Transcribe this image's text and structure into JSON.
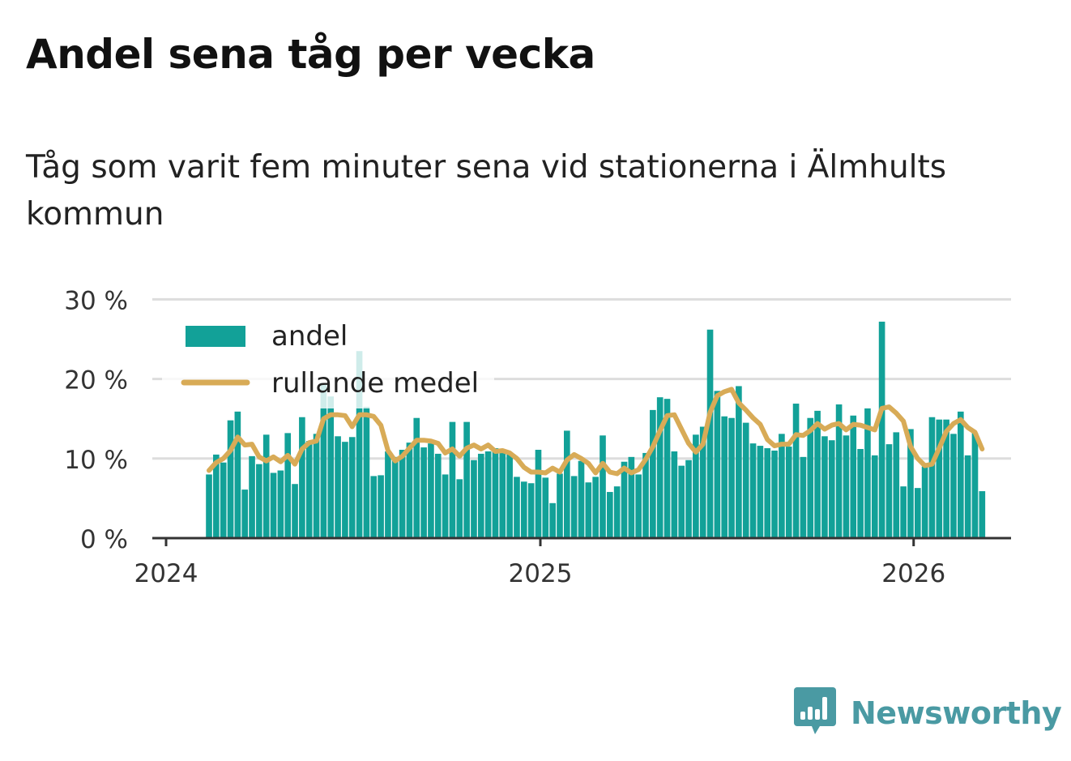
{
  "title": "Andel sena tåg per vecka",
  "subtitle": "Tåg som varit fem minuter sena vid stationerna i Älmhults kommun",
  "brand": {
    "name": "Newsworthy",
    "icon": "newsworthy-chart-bubble-icon",
    "color": "#4a9aa3"
  },
  "colors": {
    "bar": "#12a198",
    "line": "#d8ab57",
    "grid": "#dddddd",
    "axis": "#333333"
  },
  "chart_data": {
    "type": "bar",
    "title": "Andel sena tåg per vecka",
    "xlabel": "",
    "ylabel": "",
    "x_ticks": [
      "2024",
      "2025",
      "2026"
    ],
    "y_ticks": [
      "0 %",
      "10 %",
      "20 %",
      "30 %"
    ],
    "ylim": [
      0,
      30
    ],
    "grid": true,
    "legend_position": "top-left",
    "start_week": "2024-02-12",
    "series": [
      {
        "name": "andel",
        "kind": "bar",
        "values": [
          8.0,
          10.5,
          9.5,
          14.8,
          15.9,
          6.1,
          10.3,
          9.3,
          13.0,
          8.2,
          8.5,
          13.2,
          6.8,
          15.2,
          12.2,
          13.1,
          19.5,
          17.8,
          12.8,
          12.1,
          12.7,
          23.5,
          16.5,
          7.8,
          7.9,
          10.9,
          10.2,
          11.1,
          12.0,
          15.1,
          11.4,
          11.9,
          10.6,
          8.0,
          14.6,
          7.4,
          14.6,
          9.8,
          10.6,
          10.9,
          11.3,
          11.0,
          10.7,
          7.7,
          7.1,
          6.9,
          11.1,
          7.6,
          4.4,
          8.1,
          13.5,
          7.8,
          9.7,
          7.0,
          7.7,
          12.9,
          5.8,
          6.5,
          9.6,
          10.2,
          8.0,
          10.7,
          16.1,
          17.7,
          17.5,
          10.9,
          9.1,
          9.8,
          13.0,
          14.0,
          26.2,
          18.5,
          15.3,
          15.1,
          19.1,
          14.5,
          11.9,
          11.6,
          11.3,
          11.0,
          13.1,
          11.5,
          16.9,
          10.2,
          15.1,
          16.0,
          12.8,
          12.3,
          16.8,
          12.9,
          15.4,
          11.2,
          16.3,
          10.4,
          27.2,
          11.8,
          13.3,
          6.5,
          13.7,
          6.3,
          9.0,
          15.2,
          14.9,
          14.9,
          13.1,
          15.9,
          10.4,
          13.2,
          5.9
        ]
      },
      {
        "name": "rullande medel",
        "kind": "line",
        "values": [
          8.5,
          9.5,
          10.0,
          11.0,
          12.7,
          11.7,
          11.8,
          10.2,
          9.7,
          10.2,
          9.6,
          10.4,
          9.3,
          11.2,
          12.0,
          12.2,
          15.0,
          15.5,
          15.5,
          15.4,
          14.0,
          15.5,
          15.5,
          15.3,
          14.2,
          11.0,
          9.7,
          10.3,
          11.3,
          12.3,
          12.3,
          12.2,
          11.9,
          10.7,
          11.2,
          10.3,
          11.3,
          11.7,
          11.2,
          11.7,
          10.9,
          11.0,
          10.7,
          10.0,
          8.9,
          8.3,
          8.3,
          8.2,
          8.8,
          8.3,
          9.8,
          10.5,
          10.0,
          9.4,
          8.2,
          9.4,
          8.3,
          8.1,
          8.8,
          8.2,
          8.6,
          9.9,
          11.5,
          13.5,
          15.4,
          15.5,
          13.7,
          11.9,
          10.8,
          11.8,
          15.8,
          17.9,
          18.4,
          18.7,
          17.0,
          16.1,
          15.1,
          14.3,
          12.4,
          11.6,
          11.8,
          11.8,
          13.0,
          12.9,
          13.5,
          14.4,
          13.7,
          14.2,
          14.4,
          13.6,
          14.3,
          14.2,
          13.9,
          13.6,
          16.3,
          16.5,
          15.7,
          14.7,
          11.5,
          10.0,
          9.1,
          9.3,
          11.3,
          13.4,
          14.4,
          14.9,
          13.9,
          13.3,
          11.2
        ]
      }
    ]
  }
}
